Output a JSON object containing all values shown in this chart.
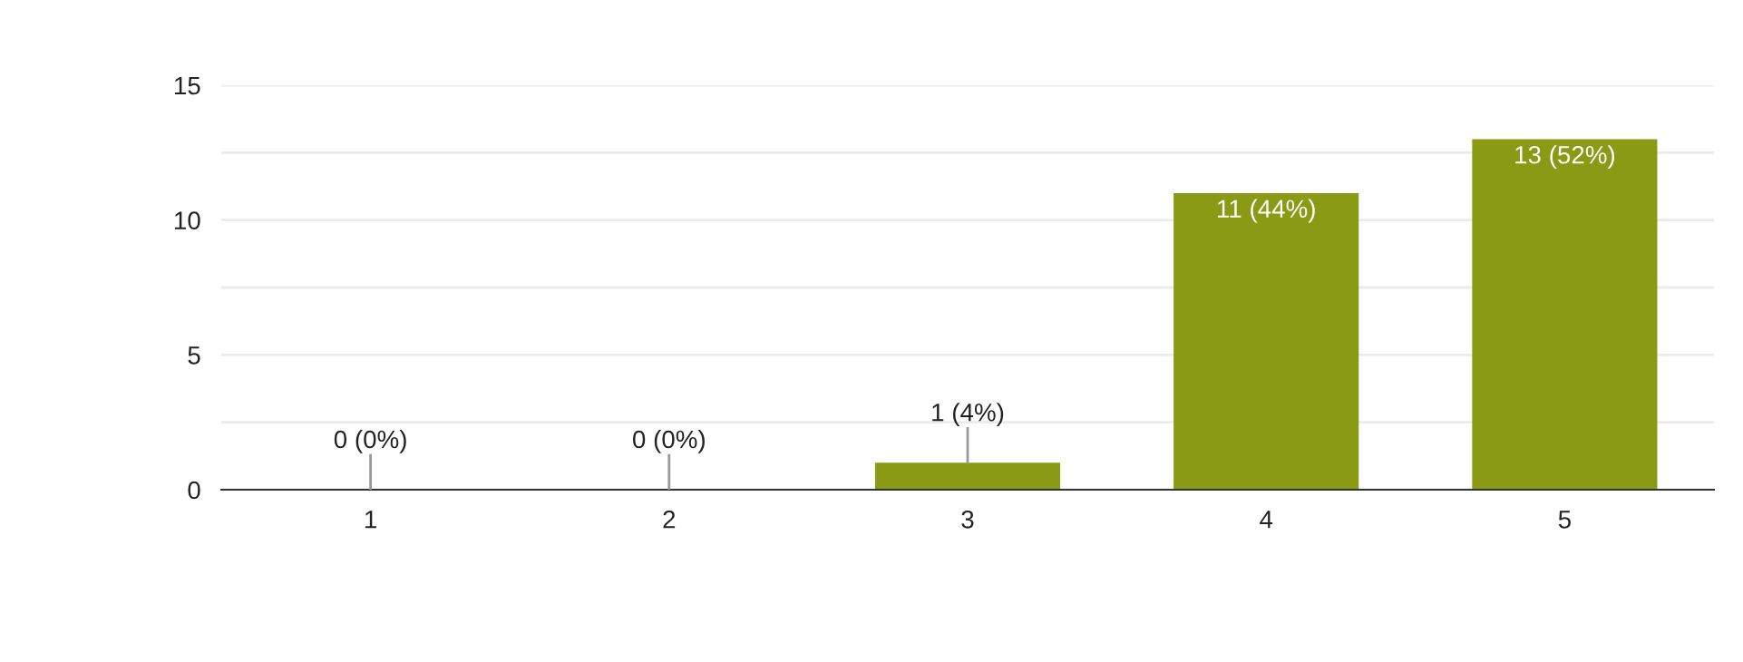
{
  "chart_data": {
    "type": "bar",
    "categories": [
      "1",
      "2",
      "3",
      "4",
      "5"
    ],
    "values": [
      0,
      0,
      1,
      11,
      13
    ],
    "value_labels": [
      "0 (0%)",
      "0 (0%)",
      "1 (4%)",
      "11 (44%)",
      "13 (52%)"
    ],
    "color": "#8a9a14",
    "ylim": [
      0,
      15
    ],
    "yticks": [
      0,
      {
        "value": 2.5,
        "label": null
      },
      5,
      {
        "value": 7.5,
        "label": null
      },
      10,
      {
        "value": 12.5,
        "label": null
      },
      15
    ],
    "grid": "y",
    "legend": false
  }
}
